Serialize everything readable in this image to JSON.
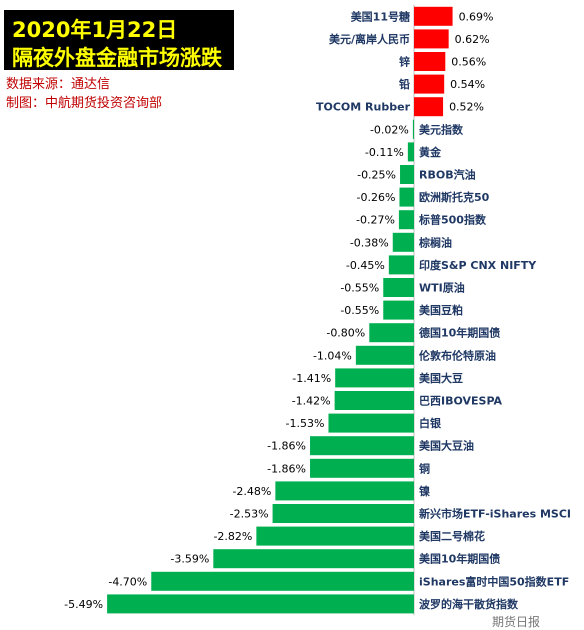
{
  "header": {
    "title_line1": "2020年1月22日",
    "title_line2": "隔夜外盘金融市场涨跌",
    "source": "数据来源：通达信",
    "credit": "制图：中航期货投资咨询部"
  },
  "watermark": "期货日报",
  "colors": {
    "positive": "#ff0000",
    "negative": "#00b050",
    "title_bg": "#000000",
    "title_text": "#ffff00",
    "subtitle_text": "#c00000",
    "label_text": "#1f3864"
  },
  "chart_data": {
    "type": "bar",
    "orientation": "horizontal",
    "value_unit": "%",
    "categories": [
      "美国11号糖",
      "美元/离岸人民币",
      "锌",
      "铅",
      "TOCOM Rubber",
      "美元指数",
      "黄金",
      "RBOB汽油",
      "欧洲斯托克50",
      "标普500指数",
      "棕榈油",
      "印度S&P CNX NIFTY",
      "WTI原油",
      "美国豆粕",
      "德国10年期国债",
      "伦敦布伦特原油",
      "美国大豆",
      "巴西IBOVESPA",
      "白银",
      "美国大豆油",
      "铜",
      "镍",
      "新兴市场ETF-iShares MSCI",
      "美国二号棉花",
      "美国10年期国债",
      "iShares富时中国50指数ETF",
      "波罗的海干散货指数"
    ],
    "values": [
      0.69,
      0.62,
      0.56,
      0.54,
      0.52,
      -0.02,
      -0.11,
      -0.25,
      -0.26,
      -0.27,
      -0.38,
      -0.45,
      -0.55,
      -0.55,
      -0.8,
      -1.04,
      -1.41,
      -1.42,
      -1.53,
      -1.86,
      -1.86,
      -2.48,
      -2.53,
      -2.82,
      -3.59,
      -4.7,
      -5.49
    ],
    "value_labels": [
      "0.69%",
      "0.62%",
      "0.56%",
      "0.54%",
      "0.52%",
      "-0.02%",
      "-0.11%",
      "-0.25%",
      "-0.26%",
      "-0.27%",
      "-0.38%",
      "-0.45%",
      "-0.55%",
      "-0.55%",
      "-0.80%",
      "-1.04%",
      "-1.41%",
      "-1.42%",
      "-1.53%",
      "-1.86%",
      "-1.86%",
      "-2.48%",
      "-2.53%",
      "-2.82%",
      "-3.59%",
      "-4.70%",
      "-5.49%"
    ],
    "grid": false,
    "legend": "none"
  }
}
